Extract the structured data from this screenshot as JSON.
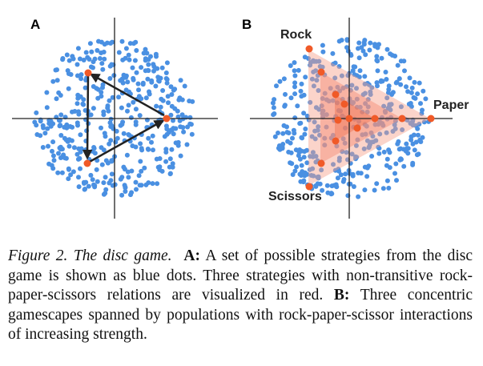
{
  "figure": {
    "panel_a_label": "A",
    "panel_b_label": "B",
    "strategy_labels": {
      "rock": "Rock",
      "paper": "Paper",
      "scissors": "Scissors"
    },
    "colors": {
      "population_dot": "#4a90e2",
      "strategy_red": "#f05a28",
      "arrow": "#222222",
      "axis": "#222222",
      "gamescape_fill": "#f7a08a"
    },
    "icons": {
      "arrow_head": "arrowhead-icon"
    }
  },
  "caption": {
    "figure_label": "Figure 2. The disc game.",
    "label_a": "A:",
    "text_a": "A set of possible strategies from the disc game is shown as blue dots. Three strategies with non-transitive rock-paper-scissors relations are visualized in red.",
    "label_b": "B:",
    "text_b": "Three concentric gamescapes spanned by populations with rock-paper-scissor interactions of increasing strength."
  }
}
